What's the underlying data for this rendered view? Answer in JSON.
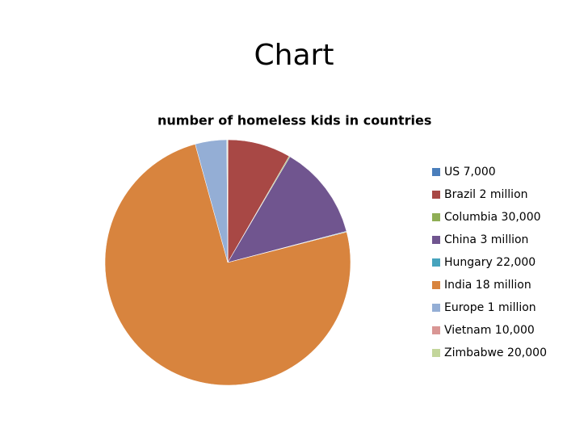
{
  "chart_data": {
    "type": "pie",
    "title": "Chart",
    "subtitle": "number of homeless kids in countries",
    "categories": [
      "US 7,000",
      "Brazil 2 million",
      "Columbia 30,000",
      "China 3 million",
      "Hungary 22,000",
      "India 18 million",
      "Europe 1 million",
      "Vietnam 10,000",
      "Zimbabwe 20,000"
    ],
    "values": [
      7000,
      2000000,
      30000,
      3000000,
      22000,
      18000000,
      1000000,
      10000,
      20000
    ],
    "colors": [
      "#4a7ebb",
      "#a84845",
      "#8fae55",
      "#70558f",
      "#46a3bd",
      "#d8843e",
      "#94aed5",
      "#d99694",
      "#c3d69b"
    ],
    "legend": "right"
  }
}
